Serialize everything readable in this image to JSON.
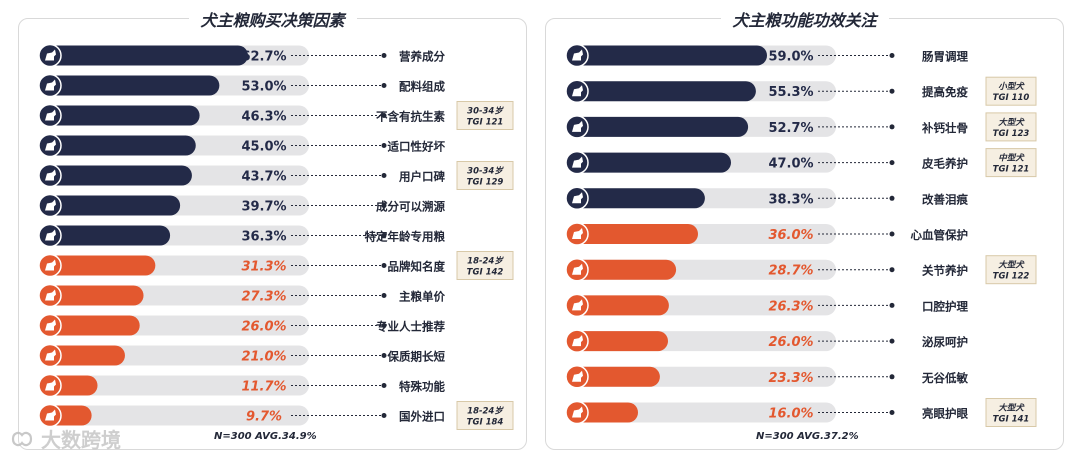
{
  "colors": {
    "dark": "#232a48",
    "accent": "#e3582f",
    "track": "#e4e4e6",
    "badge_bg": "#f6efe2",
    "badge_border": "#d8c9a8"
  },
  "chart_data": [
    {
      "type": "bar",
      "title": "犬主粮购买决策因素",
      "xlim": [
        0,
        100
      ],
      "categories": [
        "营养成分",
        "配料组成",
        "不含有抗生素",
        "适口性好坏",
        "用户口碑",
        "成分可以溯源",
        "特定年龄专用粮",
        "品牌知名度",
        "主粮单价",
        "专业人士推荐",
        "保质期长短",
        "特殊功能",
        "国外进口"
      ],
      "values": [
        62.7,
        53.0,
        46.3,
        45.0,
        43.7,
        39.7,
        36.3,
        31.3,
        27.3,
        26.0,
        21.0,
        11.7,
        9.7
      ],
      "value_labels": [
        "62.7%",
        "53.0%",
        "46.3%",
        "45.0%",
        "43.7%",
        "39.7%",
        "36.3%",
        "31.3%",
        "27.3%",
        "26.0%",
        "21.0%",
        "11.7%",
        "9.7%"
      ],
      "highlight": [
        false,
        false,
        false,
        false,
        false,
        false,
        false,
        true,
        true,
        true,
        true,
        true,
        true
      ],
      "badges": [
        {
          "index": 2,
          "line1": "30-34岁",
          "line2": "TGI 121"
        },
        {
          "index": 4,
          "line1": "30-34岁",
          "line2": "TGI 129"
        },
        {
          "index": 7,
          "line1": "18-24岁",
          "line2": "TGI 142"
        },
        {
          "index": 12,
          "line1": "18-24岁",
          "line2": "TGI 184"
        }
      ],
      "note": "N=300   AVG.34.9%"
    },
    {
      "type": "bar",
      "title": "犬主粮功能功效关注",
      "xlim": [
        0,
        100
      ],
      "categories": [
        "肠胃调理",
        "提高免疫",
        "补钙壮骨",
        "皮毛养护",
        "改善泪痕",
        "心血管保护",
        "关节养护",
        "口腔护理",
        "泌尿呵护",
        "无谷低敏",
        "亮眼护眼"
      ],
      "values": [
        59.0,
        55.3,
        52.7,
        47.0,
        38.3,
        36.0,
        28.7,
        26.3,
        26.0,
        23.3,
        16.0
      ],
      "value_labels": [
        "59.0%",
        "55.3%",
        "52.7%",
        "47.0%",
        "38.3%",
        "36.0%",
        "28.7%",
        "26.3%",
        "26.0%",
        "23.3%",
        "16.0%"
      ],
      "highlight": [
        false,
        false,
        false,
        false,
        false,
        true,
        true,
        true,
        true,
        true,
        true
      ],
      "badges": [
        {
          "index": 1,
          "line1": "小型犬",
          "line2": "TGI 110"
        },
        {
          "index": 2,
          "line1": "大型犬",
          "line2": "TGI 123"
        },
        {
          "index": 3,
          "line1": "中型犬",
          "line2": "TGI 121"
        },
        {
          "index": 6,
          "line1": "大型犬",
          "line2": "TGI 122"
        },
        {
          "index": 10,
          "line1": "大型犬",
          "line2": "TGI 141"
        }
      ],
      "note": "N=300   AVG.37.2%"
    }
  ],
  "watermark": {
    "text": "大数跨境",
    "icon": "brand-logo-icon"
  }
}
